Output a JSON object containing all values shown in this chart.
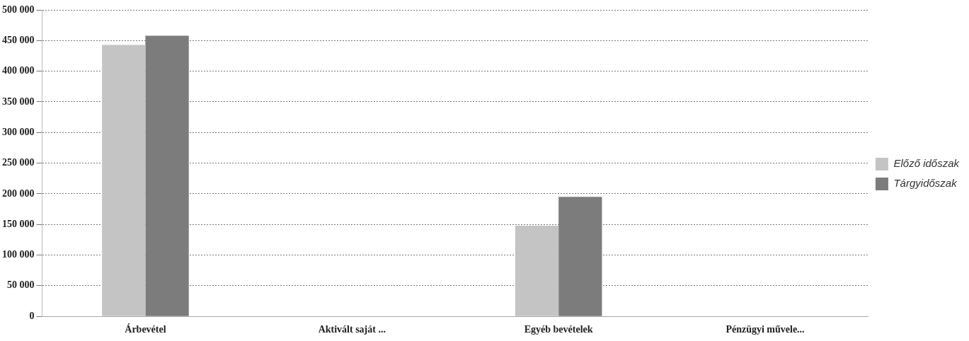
{
  "chart_data": {
    "type": "bar",
    "categories": [
      "Árbevétel",
      "Aktivált saját ...",
      "Egyéb bevételek",
      "Pénzügyi művele..."
    ],
    "series": [
      {
        "name": "Előző időszak",
        "color": "#c4c4c4",
        "values": [
          443000,
          null,
          148000,
          null
        ]
      },
      {
        "name": "Tárgyidőszak",
        "color": "#7c7c7c",
        "values": [
          458000,
          null,
          195000,
          null
        ]
      }
    ],
    "ylim": [
      0,
      500000
    ],
    "yticks": [
      {
        "value": 0,
        "label": "0"
      },
      {
        "value": 50000,
        "label": "50 000"
      },
      {
        "value": 100000,
        "label": "100 000"
      },
      {
        "value": 150000,
        "label": "150 000"
      },
      {
        "value": 200000,
        "label": "200 000"
      },
      {
        "value": 250000,
        "label": "250 000"
      },
      {
        "value": 300000,
        "label": "300 000"
      },
      {
        "value": 350000,
        "label": "350 000"
      },
      {
        "value": 400000,
        "label": "400 000"
      },
      {
        "value": 450000,
        "label": "450 000"
      },
      {
        "value": 500000,
        "label": "500 000"
      }
    ],
    "grid": "y",
    "legend": "right"
  }
}
